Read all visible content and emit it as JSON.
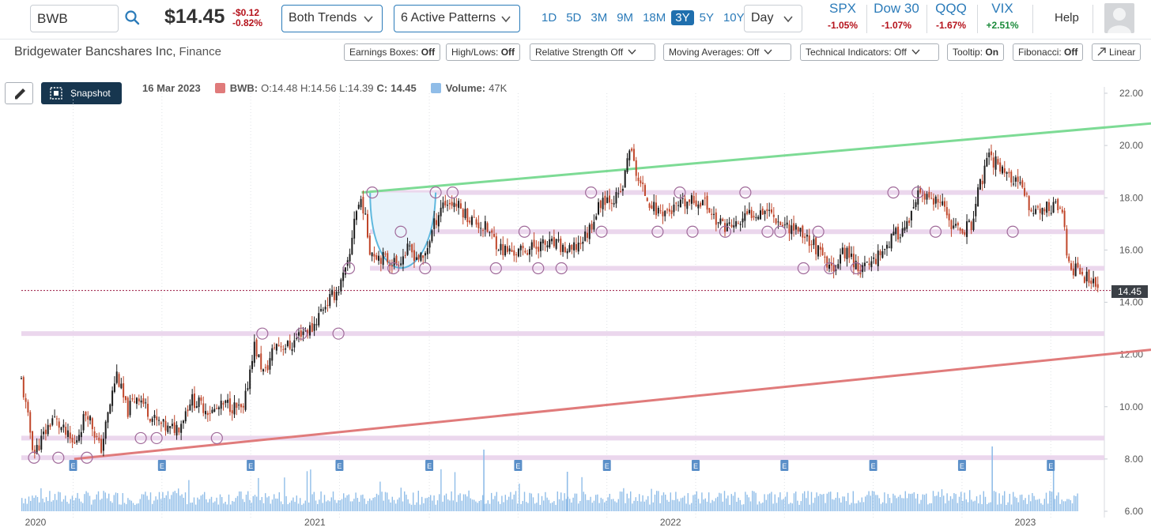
{
  "topbar": {
    "symbol": "BWB",
    "price": "$14.45",
    "change": "-$0.12",
    "change_pct": "-0.82%",
    "trends_dropdown": "Both Trends",
    "patterns_dropdown": "6 Active Patterns",
    "ranges": [
      "1D",
      "5D",
      "3M",
      "9M",
      "18M",
      "3Y",
      "5Y",
      "10Y"
    ],
    "active_range": "3Y",
    "interval": "Day",
    "indices": [
      {
        "name": "SPX",
        "value": "-1.05%",
        "dir": "neg"
      },
      {
        "name": "Dow 30",
        "value": "-1.07%",
        "dir": "neg"
      },
      {
        "name": "QQQ",
        "value": "-1.67%",
        "dir": "neg"
      },
      {
        "name": "VIX",
        "value": "+2.51%",
        "dir": "pos"
      }
    ],
    "help": "Help",
    "colors": {
      "accent": "#2b7bb9",
      "negative": "#b5121b",
      "positive": "#1a8a3a"
    }
  },
  "company": {
    "name": "Bridgewater Bancshares Inc,",
    "sector": "Finance"
  },
  "toolbar": {
    "earnings": {
      "label": "Earnings Boxes:",
      "state": "Off"
    },
    "highlows": {
      "label": "High/Lows:",
      "state": "Off"
    },
    "relstrength": "Relative Strength Off",
    "moving_avgs": "Moving Averages: Off",
    "tech_ind": "Technical Indicators: Off",
    "tooltip": {
      "label": "Tooltip:",
      "state": "On"
    },
    "fibonacci": {
      "label": "Fibonacci:",
      "state": "Off"
    },
    "scale": "Linear"
  },
  "chart_header": {
    "snapshot": "Snapshot",
    "date": "16 Mar 2023",
    "ticker_label": "BWB:",
    "ohlc": "O:14.48 H:14.56 L:14.39",
    "close_label": "C:",
    "close_value": "14.45",
    "volume_label": "Volume:",
    "volume_value": "47K"
  },
  "chart_data": {
    "type": "line",
    "title": "",
    "y_ticks": [
      "22.00",
      "20.00",
      "18.00",
      "16.00",
      "14.00",
      "12.00",
      "10.00",
      "8.00",
      "6.00"
    ],
    "ylim": [
      6,
      22
    ],
    "x_ticks": [
      {
        "label": "2020",
        "t": 0
      },
      {
        "label": "2021",
        "t": 0.2643
      },
      {
        "label": "2022",
        "t": 0.6008
      },
      {
        "label": "2023",
        "t": 0.9364
      }
    ],
    "last_price": "14.45",
    "price_path": [
      [
        0.0,
        11.0
      ],
      [
        0.012,
        8.2
      ],
      [
        0.03,
        9.6
      ],
      [
        0.05,
        8.5
      ],
      [
        0.062,
        9.9
      ],
      [
        0.075,
        8.3
      ],
      [
        0.09,
        11.3
      ],
      [
        0.1,
        9.8
      ],
      [
        0.11,
        10.5
      ],
      [
        0.125,
        9.5
      ],
      [
        0.14,
        9.1
      ],
      [
        0.15,
        9.3
      ],
      [
        0.16,
        10.3
      ],
      [
        0.18,
        9.8
      ],
      [
        0.195,
        10.1
      ],
      [
        0.21,
        9.8
      ],
      [
        0.22,
        12.4
      ],
      [
        0.23,
        11.2
      ],
      [
        0.24,
        12.4
      ],
      [
        0.255,
        12.3
      ],
      [
        0.265,
        12.9
      ],
      [
        0.275,
        13.0
      ],
      [
        0.285,
        13.8
      ],
      [
        0.3,
        14.5
      ],
      [
        0.31,
        15.5
      ],
      [
        0.315,
        17.3
      ],
      [
        0.322,
        18.0
      ],
      [
        0.33,
        16.0
      ],
      [
        0.342,
        15.7
      ],
      [
        0.355,
        15.5
      ],
      [
        0.366,
        16.0
      ],
      [
        0.38,
        15.6
      ],
      [
        0.39,
        16.9
      ],
      [
        0.398,
        17.8
      ],
      [
        0.41,
        17.8
      ],
      [
        0.425,
        17.2
      ],
      [
        0.44,
        16.8
      ],
      [
        0.455,
        16.0
      ],
      [
        0.47,
        15.9
      ],
      [
        0.49,
        16.2
      ],
      [
        0.505,
        16.2
      ],
      [
        0.52,
        15.9
      ],
      [
        0.535,
        16.6
      ],
      [
        0.55,
        18.0
      ],
      [
        0.565,
        18.0
      ],
      [
        0.57,
        18.5
      ],
      [
        0.575,
        20.0
      ],
      [
        0.585,
        18.5
      ],
      [
        0.6,
        17.5
      ],
      [
        0.615,
        17.5
      ],
      [
        0.63,
        17.8
      ],
      [
        0.645,
        17.9
      ],
      [
        0.66,
        17.0
      ],
      [
        0.675,
        16.9
      ],
      [
        0.69,
        17.4
      ],
      [
        0.705,
        17.6
      ],
      [
        0.72,
        17.0
      ],
      [
        0.735,
        16.8
      ],
      [
        0.75,
        16.2
      ],
      [
        0.765,
        15.2
      ],
      [
        0.78,
        16.0
      ],
      [
        0.795,
        15.2
      ],
      [
        0.81,
        15.8
      ],
      [
        0.825,
        16.5
      ],
      [
        0.84,
        17.0
      ],
      [
        0.85,
        18.2
      ],
      [
        0.855,
        18.0
      ],
      [
        0.87,
        17.7
      ],
      [
        0.885,
        16.7
      ],
      [
        0.9,
        17.0
      ],
      [
        0.905,
        18.2
      ],
      [
        0.915,
        19.5
      ],
      [
        0.925,
        19.3
      ],
      [
        0.935,
        18.8
      ],
      [
        0.945,
        18.4
      ],
      [
        0.955,
        17.6
      ],
      [
        0.965,
        17.5
      ],
      [
        0.975,
        17.7
      ],
      [
        0.985,
        17.6
      ],
      [
        0.99,
        15.3
      ],
      [
        1.0,
        15.3
      ],
      [
        1.01,
        14.8
      ],
      [
        1.02,
        14.5
      ]
    ],
    "trendlines": [
      {
        "name": "upper",
        "color": "#7ddb95",
        "from": [
          0.322,
          18.2
        ],
        "to": [
          1.0,
          20.6
        ]
      },
      {
        "name": "lower",
        "color": "#e07b7b",
        "from": [
          0.05,
          8.0
        ],
        "to": [
          1.0,
          11.9
        ]
      }
    ],
    "support_resistance_levels": [
      18.2,
      16.7,
      15.3,
      12.8,
      8.8,
      8.05
    ],
    "earnings_markers": "E",
    "series_colors": {
      "candle_up": "#1b1b1b",
      "candle_down": "#c0462a",
      "volume": "#90bde8",
      "level_band": "#e9d3eb",
      "pattern_fill": "#e8f3fb"
    }
  }
}
